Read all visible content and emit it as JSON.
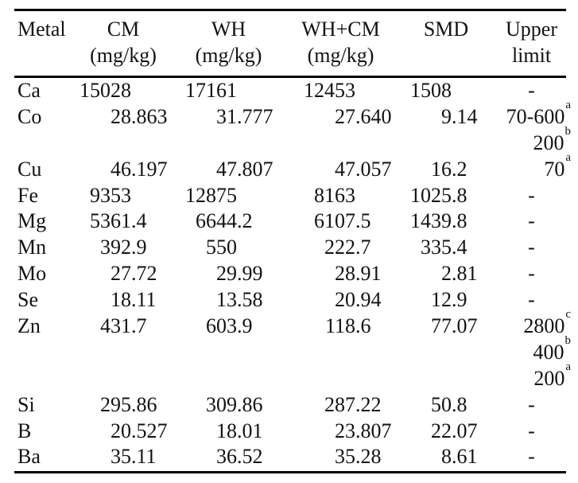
{
  "table": {
    "headers": [
      {
        "id": "metal",
        "line1": "Metal",
        "line2": ""
      },
      {
        "id": "cm",
        "line1": "CM",
        "line2": "(mg/kg)"
      },
      {
        "id": "wh",
        "line1": "WH",
        "line2": "(mg/kg)"
      },
      {
        "id": "whcm",
        "line1": "WH+CM",
        "line2": "(mg/kg)"
      },
      {
        "id": "smd",
        "line1": "SMD",
        "line2": ""
      },
      {
        "id": "upper",
        "line1": "Upper",
        "line2": "limit"
      }
    ],
    "rows": [
      {
        "metal": "Ca",
        "cm": "15028",
        "wh": "17161",
        "whcm": "12453",
        "smd": "1508",
        "upper": {
          "value": "-",
          "sup": ""
        }
      },
      {
        "metal": "Co",
        "cm": "28.863",
        "wh": "31.777",
        "whcm": "27.640",
        "smd": "9.14",
        "upper": {
          "value": "70-600",
          "sup": "a"
        }
      },
      {
        "metal": "",
        "cm": "",
        "wh": "",
        "whcm": "",
        "smd": "",
        "upper": {
          "value": "200",
          "sup": "b"
        }
      },
      {
        "metal": "Cu",
        "cm": "46.197",
        "wh": "47.807",
        "whcm": "47.057",
        "smd": "16.2",
        "upper": {
          "value": "70",
          "sup": "a"
        }
      },
      {
        "metal": "Fe",
        "cm": "9353",
        "wh": "12875",
        "whcm": "8163",
        "smd": "1025.8",
        "upper": {
          "value": "-",
          "sup": ""
        }
      },
      {
        "metal": "Mg",
        "cm": "5361.4",
        "wh": "6644.2",
        "whcm": "6107.5",
        "smd": "1439.8",
        "upper": {
          "value": "-",
          "sup": ""
        }
      },
      {
        "metal": "Mn",
        "cm": "392.9",
        "wh": "550",
        "whcm": "222.7",
        "smd": "335.4",
        "upper": {
          "value": "-",
          "sup": ""
        }
      },
      {
        "metal": "Mo",
        "cm": "27.72",
        "wh": "29.99",
        "whcm": "28.91",
        "smd": "2.81",
        "upper": {
          "value": "-",
          "sup": ""
        }
      },
      {
        "metal": "Se",
        "cm": "18.11",
        "wh": "13.58",
        "whcm": "20.94",
        "smd": "12.9",
        "upper": {
          "value": "-",
          "sup": ""
        }
      },
      {
        "metal": "Zn",
        "cm": "431.7",
        "wh": "603.9",
        "whcm": "118.6",
        "smd": "77.07",
        "upper": {
          "value": "2800",
          "sup": "c"
        }
      },
      {
        "metal": "",
        "cm": "",
        "wh": "",
        "whcm": "",
        "smd": "",
        "upper": {
          "value": "400",
          "sup": "b"
        }
      },
      {
        "metal": "",
        "cm": "",
        "wh": "",
        "whcm": "",
        "smd": "",
        "upper": {
          "value": "200",
          "sup": "a"
        }
      },
      {
        "metal": "Si",
        "cm": "295.86",
        "wh": "309.86",
        "whcm": "287.22",
        "smd": "50.8",
        "upper": {
          "value": "-",
          "sup": ""
        }
      },
      {
        "metal": "B",
        "cm": "20.527",
        "wh": "18.01",
        "whcm": "23.807",
        "smd": "22.07",
        "upper": {
          "value": "-",
          "sup": ""
        }
      },
      {
        "metal": "Ba",
        "cm": "35.11",
        "wh": "36.52",
        "whcm": "35.28",
        "smd": "8.61",
        "upper": {
          "value": "-",
          "sup": ""
        }
      }
    ],
    "colors": {
      "text": "#121212",
      "rule": "#000000",
      "background": "#ffffff"
    }
  }
}
